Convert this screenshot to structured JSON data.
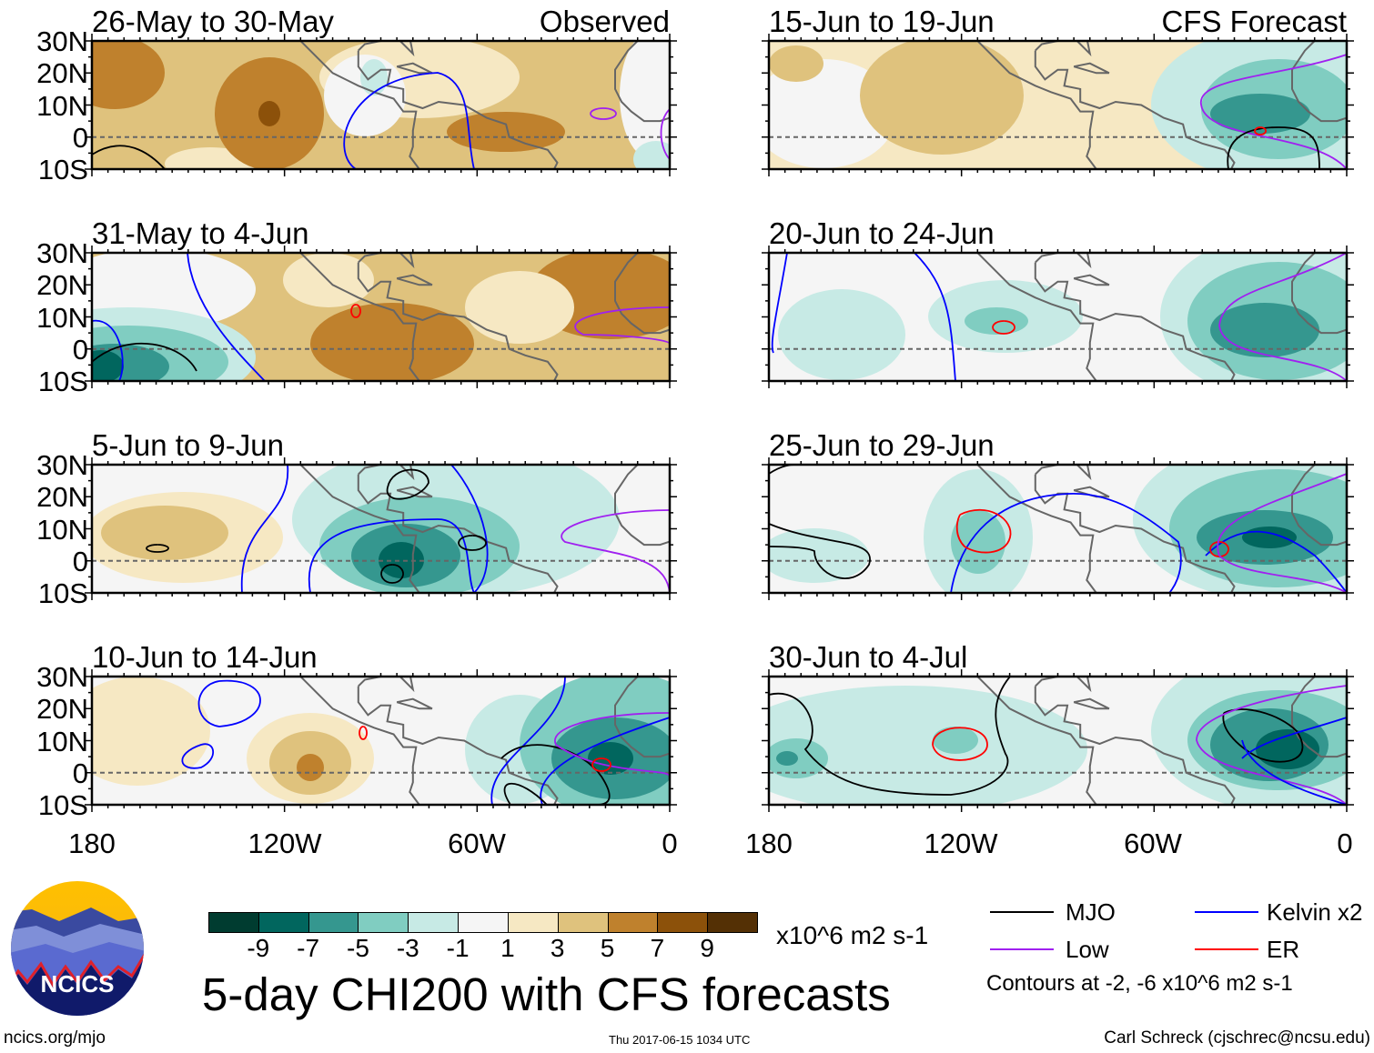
{
  "panels": [
    {
      "title": "26-May to 30-May",
      "label": "Observed"
    },
    {
      "title": "31-May to 4-Jun"
    },
    {
      "title": "5-Jun to 9-Jun"
    },
    {
      "title": "10-Jun to 14-Jun"
    },
    {
      "title": "15-Jun to 19-Jun",
      "label": "CFS Forecast"
    },
    {
      "title": "20-Jun to 24-Jun"
    },
    {
      "title": "25-Jun to 29-Jun"
    },
    {
      "title": "30-Jun to 4-Jul"
    }
  ],
  "lat_labels": [
    "30N",
    "20N",
    "10N",
    "0",
    "10S"
  ],
  "lon_labels": [
    "180",
    "120W",
    "60W",
    "0"
  ],
  "colorbar": {
    "colors": [
      "#003c30",
      "#01665e",
      "#35978f",
      "#80cdc1",
      "#c7eae5",
      "#f5f5f5",
      "#f6e8c3",
      "#dfc27d",
      "#bf812d",
      "#8c510a",
      "#543005"
    ],
    "ticks": [
      "-9",
      "-7",
      "-5",
      "-3",
      "-1",
      "1",
      "3",
      "5",
      "7",
      "9"
    ],
    "units": "x10^6 m2 s-1"
  },
  "title": "5-day CHI200 with CFS forecasts",
  "legend": {
    "items": [
      {
        "label": "MJO",
        "color": "#000000"
      },
      {
        "label": "Kelvin x2",
        "color": "#0000ff"
      },
      {
        "label": "Low",
        "color": "#a020f0"
      },
      {
        "label": "ER",
        "color": "#ff0000"
      }
    ],
    "note": "Contours at -2, -6 x10^6 m2 s-1"
  },
  "logo_text": "NCICS",
  "footer": {
    "url": "ncics.org/mjo",
    "timestamp": "Thu 2017-06-15 1034 UTC",
    "credit": "Carl Schreck (cjschrec@ncsu.edu)"
  }
}
